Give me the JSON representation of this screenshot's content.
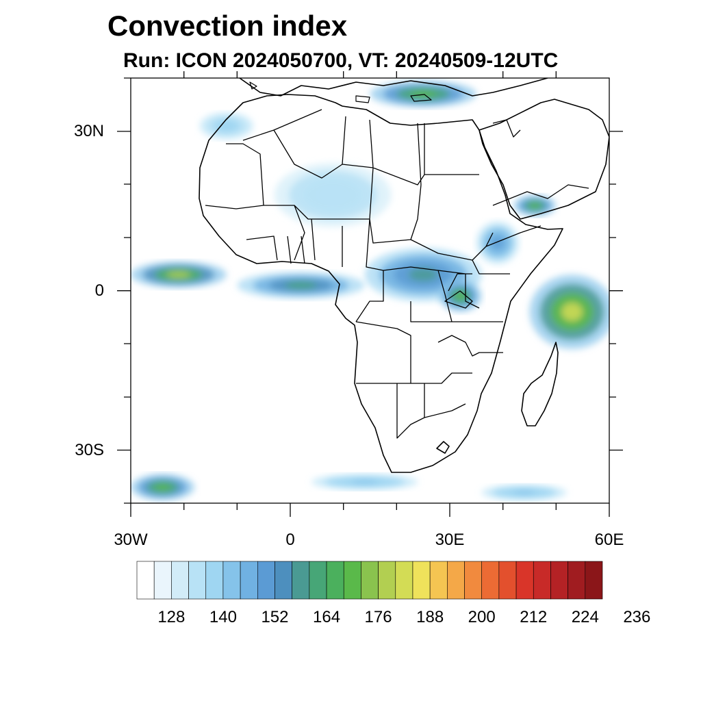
{
  "title": "Convection index",
  "subtitle": "Run: ICON 2024050700,  VT: 20240509-12UTC",
  "axes": {
    "lat_labels": [
      "30N",
      "0",
      "30S"
    ],
    "lon_labels": [
      "30W",
      "0",
      "30E",
      "60E"
    ]
  },
  "colorbar": {
    "labels": [
      "128",
      "140",
      "152",
      "164",
      "176",
      "188",
      "200",
      "212",
      "224",
      "236"
    ],
    "colors": [
      "#ffffff",
      "#eaf5fc",
      "#d2ecf8",
      "#b8e2f6",
      "#9fd6f2",
      "#85c3ea",
      "#70b1e2",
      "#5b9bd4",
      "#4d8fbe",
      "#4a9a93",
      "#47a677",
      "#4bb05d",
      "#5ab94a",
      "#8ac34e",
      "#b2cf51",
      "#d3dc55",
      "#efe25b",
      "#f5c552",
      "#f4a848",
      "#f18a3e",
      "#ec6b34",
      "#e3502d",
      "#d93529",
      "#c82a28",
      "#b42225",
      "#a01c20",
      "#8b1619"
    ]
  },
  "map": {
    "extent": {
      "lon_min": -30,
      "lon_max": 60,
      "lat_min": -40,
      "lat_max": 40
    },
    "regions": [
      {
        "name": "atlantic-itcz-band",
        "lon": -21,
        "lat": 3,
        "rx": 9,
        "ry": 2.5,
        "level": 14
      },
      {
        "name": "west-africa-itcz-band",
        "lon": 2,
        "lat": 1,
        "rx": 12,
        "ry": 2.5,
        "level": 10
      },
      {
        "name": "central-africa-convection",
        "lon": 25,
        "lat": 3,
        "rx": 11,
        "ry": 5,
        "level": 9
      },
      {
        "name": "lake-victoria-convection",
        "lon": 32,
        "lat": -1,
        "rx": 4,
        "ry": 3,
        "level": 12
      },
      {
        "name": "east-africa-ocean-convection",
        "lon": 53,
        "lat": -4,
        "rx": 8,
        "ry": 7,
        "level": 15
      },
      {
        "name": "mediterranean-convection",
        "lon": 25,
        "lat": 37,
        "rx": 10,
        "ry": 2.5,
        "level": 12
      },
      {
        "name": "sahara-scattered",
        "lon": 8,
        "lat": 18,
        "rx": 11,
        "ry": 6,
        "level": 3
      },
      {
        "name": "ethiopia-convection",
        "lon": 39,
        "lat": 9,
        "rx": 4,
        "ry": 4,
        "level": 7
      },
      {
        "name": "yemen-convection",
        "lon": 46,
        "lat": 16,
        "rx": 4,
        "ry": 2,
        "level": 12
      },
      {
        "name": "south-atlantic-convection",
        "lon": -24,
        "lat": -37,
        "rx": 6,
        "ry": 2.5,
        "level": 12
      },
      {
        "name": "south-atlantic-streak",
        "lon": 14,
        "lat": -36,
        "rx": 10,
        "ry": 1.5,
        "level": 5
      },
      {
        "name": "southern-ocean-streak",
        "lon": 44,
        "lat": -38,
        "rx": 8,
        "ry": 1.5,
        "level": 5
      },
      {
        "name": "west-sahara-coast",
        "lon": -12,
        "lat": 31,
        "rx": 5,
        "ry": 2.5,
        "level": 4
      }
    ]
  }
}
